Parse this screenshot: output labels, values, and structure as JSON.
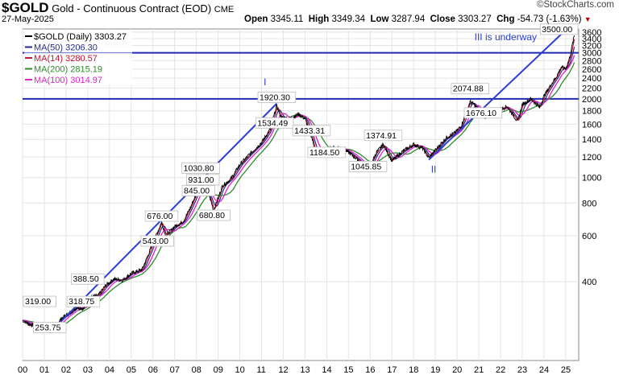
{
  "header": {
    "symbol": "$GOLD",
    "name": "Gold - Continuous Contract (EOD)",
    "exchange": "CME",
    "date": "27-May-2025",
    "open_label": "Open",
    "open": "3345.11",
    "high_label": "High",
    "high": "3349.34",
    "low_label": "Low",
    "low": "3287.94",
    "close_label": "Close",
    "close": "3303.27",
    "chg_label": "Chg",
    "chg": "-54.73 (-1.63%)",
    "brand": "©StockCharts.com"
  },
  "legend": [
    {
      "label": "$GOLD (Daily) 3303.27",
      "color": "#000000"
    },
    {
      "label": "MA(50) 3206.30",
      "color": "#1f2a8c"
    },
    {
      "label": "MA(14) 3280.57",
      "color": "#c8102e"
    },
    {
      "label": "MA(200) 2815.19",
      "color": "#2e8b2e"
    },
    {
      "label": "MA(100) 3014.97",
      "color": "#e020c8"
    }
  ],
  "chart_data": {
    "type": "line",
    "scale": "log",
    "title": "$GOLD Gold - Continuous Contract (EOD)",
    "x_ticks": [
      "00",
      "01",
      "02",
      "03",
      "04",
      "05",
      "06",
      "07",
      "08",
      "09",
      "10",
      "11",
      "12",
      "13",
      "14",
      "15",
      "16",
      "17",
      "18",
      "19",
      "20",
      "21",
      "22",
      "23",
      "24",
      "25"
    ],
    "y_ticks": [
      400,
      600,
      800,
      1000,
      1200,
      1400,
      1600,
      1800,
      2000,
      2200,
      2400,
      2600,
      2800,
      3000,
      3200,
      3400,
      3600
    ],
    "ylim": [
      200,
      3700
    ],
    "xlim": [
      2000.0,
      2025.6
    ],
    "series": [
      {
        "name": "$GOLD (Daily)",
        "color": "#000000",
        "x": [
          2000.0,
          2000.3,
          2000.7,
          2001.0,
          2001.2,
          2001.5,
          2001.8,
          2002.2,
          2002.5,
          2002.8,
          2003.2,
          2003.5,
          2003.8,
          2004.2,
          2004.6,
          2005.0,
          2005.5,
          2006.0,
          2006.4,
          2006.6,
          2007.0,
          2007.4,
          2007.7,
          2008.2,
          2008.6,
          2008.8,
          2009.2,
          2009.6,
          2010.0,
          2010.5,
          2011.0,
          2011.4,
          2011.7,
          2011.9,
          2012.3,
          2012.7,
          2013.0,
          2013.3,
          2013.5,
          2013.9,
          2014.2,
          2014.6,
          2015.0,
          2015.5,
          2015.9,
          2016.3,
          2016.6,
          2017.0,
          2017.5,
          2018.0,
          2018.4,
          2018.7,
          2019.1,
          2019.5,
          2019.9,
          2020.2,
          2020.6,
          2020.8,
          2021.0,
          2021.3,
          2021.6,
          2022.0,
          2022.3,
          2022.8,
          2023.0,
          2023.4,
          2023.8,
          2024.0,
          2024.3,
          2024.6,
          2024.8,
          2025.0,
          2025.2,
          2025.3,
          2025.4
        ],
        "y": [
          285,
          275,
          270,
          262,
          265,
          270,
          290,
          305,
          320,
          315,
          350,
          355,
          385,
          410,
          405,
          430,
          445,
          560,
          676,
          600,
          650,
          680,
          760,
          950,
          850,
          750,
          930,
          990,
          1120,
          1240,
          1360,
          1530,
          1880,
          1700,
          1680,
          1750,
          1680,
          1440,
          1240,
          1240,
          1300,
          1300,
          1250,
          1160,
          1070,
          1250,
          1340,
          1160,
          1260,
          1340,
          1300,
          1190,
          1300,
          1420,
          1480,
          1580,
          1950,
          1900,
          1800,
          1700,
          1800,
          1830,
          1870,
          1640,
          1900,
          2000,
          1850,
          2050,
          2250,
          2450,
          2650,
          2600,
          2900,
          3200,
          3500
        ]
      },
      {
        "name": "MA(50)",
        "color": "#1f2a8c"
      },
      {
        "name": "MA(14)",
        "color": "#c8102e"
      },
      {
        "name": "MA(200)",
        "color": "#2e8b2e"
      },
      {
        "name": "MA(100)",
        "color": "#e020c8"
      }
    ],
    "horizontal_lines": [
      2000,
      3000
    ],
    "trend_lines": [
      {
        "x": [
          2001.25,
          2011.7
        ],
        "y": [
          255,
          1920
        ]
      },
      {
        "x": [
          2018.7,
          2025.05
        ],
        "y": [
          1170,
          3700
        ]
      }
    ],
    "annotations": [
      {
        "text": "319.00",
        "x": 2000.15,
        "y": 319
      },
      {
        "text": "253.75",
        "x": 2001.25,
        "y": 253.75
      },
      {
        "text": "388.50",
        "x": 2003.0,
        "y": 388.5
      },
      {
        "text": "318.75",
        "x": 2002.8,
        "y": 318.75
      },
      {
        "text": "543.00",
        "x": 2006.2,
        "y": 543
      },
      {
        "text": "676.00",
        "x": 2006.4,
        "y": 676
      },
      {
        "text": "680.80",
        "x": 2008.8,
        "y": 680.8
      },
      {
        "text": "845.00",
        "x": 2008.1,
        "y": 845
      },
      {
        "text": "931.00",
        "x": 2008.3,
        "y": 931
      },
      {
        "text": "1030.80",
        "x": 2008.2,
        "y": 1030.8
      },
      {
        "text": "1534.49",
        "x": 2011.6,
        "y": 1534.49
      },
      {
        "text": "1920.30",
        "x": 2011.7,
        "y": 1920.3
      },
      {
        "text": "1433.31",
        "x": 2013.3,
        "y": 1433.31
      },
      {
        "text": "1184.50",
        "x": 2014.0,
        "y": 1184.5
      },
      {
        "text": "1045.85",
        "x": 2015.9,
        "y": 1045.85
      },
      {
        "text": "1374.91",
        "x": 2016.6,
        "y": 1374.91
      },
      {
        "text": "1676.10",
        "x": 2021.2,
        "y": 1676.1
      },
      {
        "text": "2074.88",
        "x": 2020.6,
        "y": 2074.88
      },
      {
        "text": "3500.00",
        "x": 2025.3,
        "y": 3500
      }
    ],
    "wave_labels": [
      {
        "text": "I",
        "x": 2011.1,
        "y": 2250
      },
      {
        "text": "II",
        "x": 2018.8,
        "y": 1045
      },
      {
        "text": "III is underway",
        "x": 2020.8,
        "y": 3350
      }
    ]
  }
}
